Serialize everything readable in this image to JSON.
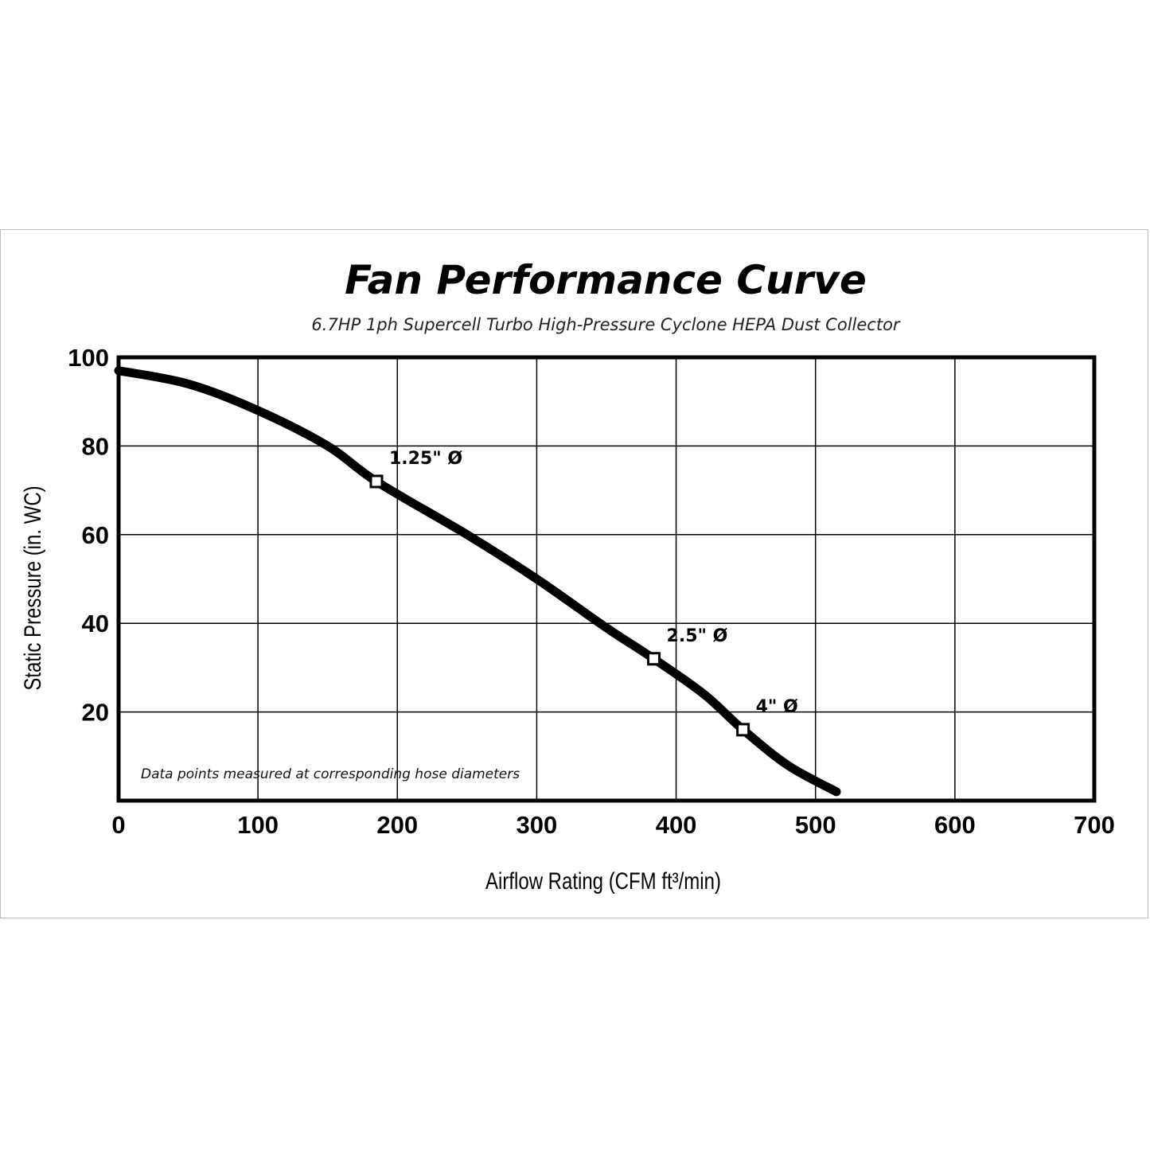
{
  "chart_data": {
    "type": "line",
    "title": "Fan Performance Curve",
    "subtitle": "6.7HP 1ph Supercell Turbo High-Pressure Cyclone HEPA Dust Collector",
    "xlabel": "Airflow Rating (CFM ft³/min)",
    "ylabel": "Static Pressure (in. WC)",
    "xlim": [
      0,
      700
    ],
    "ylim": [
      0,
      100
    ],
    "x_ticks": [
      0,
      100,
      200,
      300,
      400,
      500,
      600,
      700
    ],
    "x_tick_labels": [
      "0",
      "100",
      "200",
      "300",
      "400",
      "500",
      "600",
      "700"
    ],
    "y_ticks": [
      20,
      40,
      60,
      80,
      100
    ],
    "y_tick_labels": [
      "20",
      "40",
      "60",
      "80",
      "100"
    ],
    "grid": true,
    "series": [
      {
        "x": [
          0,
          50,
          100,
          150,
          185,
          250,
          300,
          350,
          384,
          420,
          448,
          480,
          515
        ],
        "y": [
          97,
          94,
          88,
          80,
          72,
          60,
          50,
          39,
          32,
          24,
          16,
          8,
          2
        ]
      }
    ],
    "points": [
      {
        "label": "1.25\" Ø",
        "x": 185,
        "y": 72
      },
      {
        "label": "2.5\" Ø",
        "x": 384,
        "y": 32
      },
      {
        "label": "4\" Ø",
        "x": 448,
        "y": 16
      }
    ],
    "annotation": "Data points measured at corresponding hose diameters",
    "colors": {
      "line": "#000000",
      "grid": "#000000",
      "marker_fill": "#ffffff"
    }
  }
}
